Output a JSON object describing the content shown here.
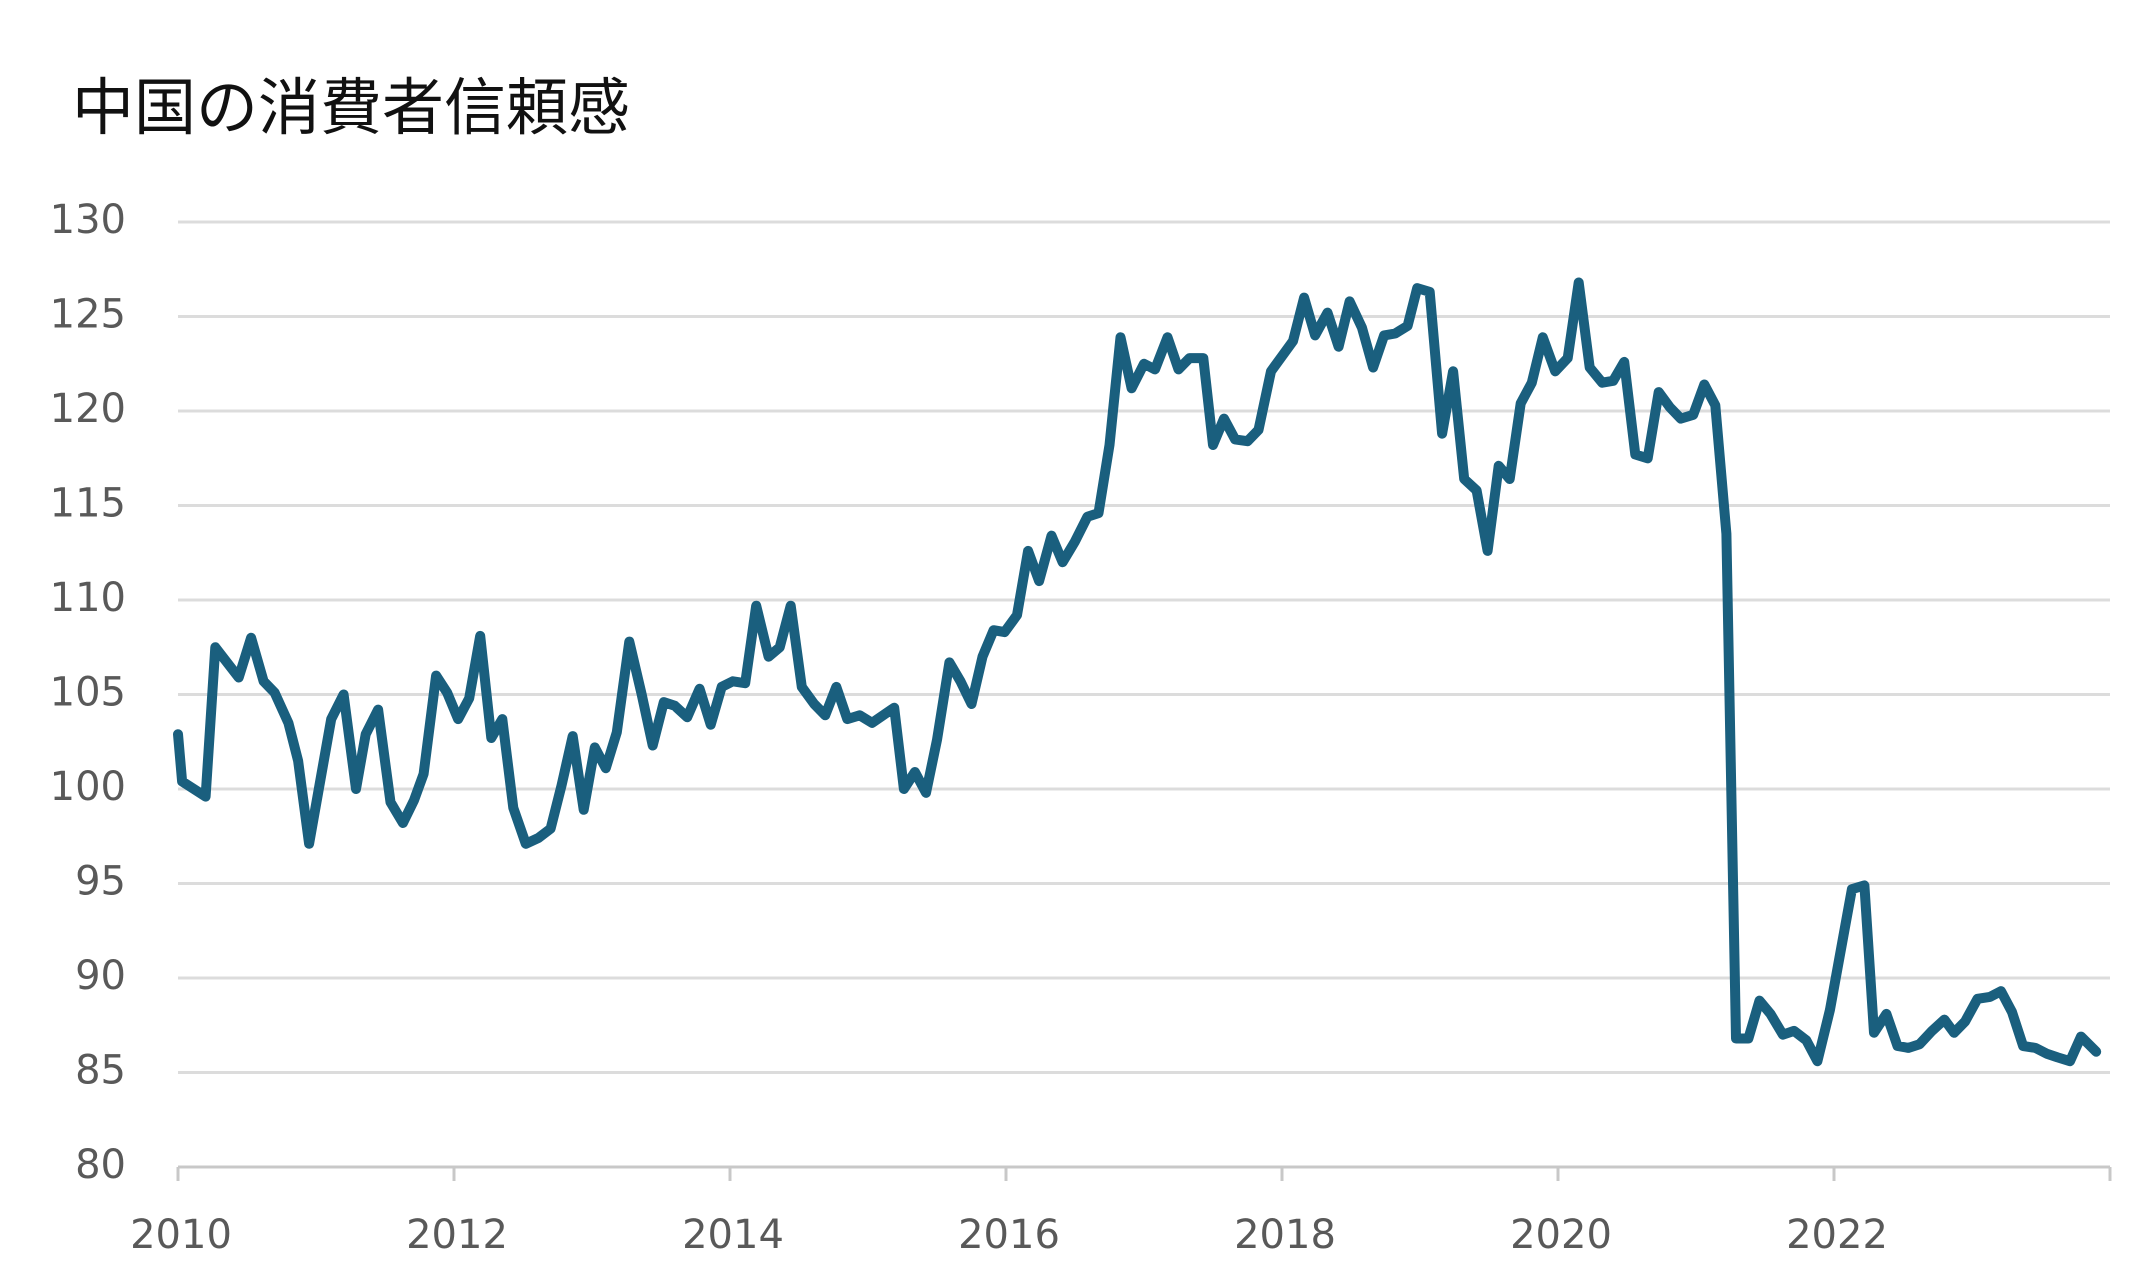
{
  "chart_data": {
    "type": "line",
    "title": "中国の消費者信頼感",
    "x": [
      2010.0,
      2010.03,
      2010.2,
      2010.27,
      2010.44,
      2010.53,
      2010.62,
      2010.7,
      2010.8,
      2010.87,
      2010.95,
      2011.02,
      2011.11,
      2011.2,
      2011.29,
      2011.36,
      2011.45,
      2011.54,
      2011.63,
      2011.71,
      2011.78,
      2011.87,
      2011.95,
      2012.03,
      2012.11,
      2012.19,
      2012.27,
      2012.35,
      2012.43,
      2012.52,
      2012.61,
      2012.7,
      2012.78,
      2012.86,
      2012.94,
      2013.02,
      2013.1,
      2013.18,
      2013.27,
      2013.36,
      2013.44,
      2013.52,
      2013.6,
      2013.69,
      2013.78,
      2013.86,
      2013.94,
      2014.02,
      2014.11,
      2014.19,
      2014.28,
      2014.36,
      2014.44,
      2014.52,
      2014.61,
      2014.69,
      2014.77,
      2014.85,
      2014.94,
      2015.03,
      2015.19,
      2015.26,
      2015.34,
      2015.42,
      2015.5,
      2015.59,
      2015.67,
      2015.75,
      2015.83,
      2015.91,
      2015.99,
      2016.08,
      2016.16,
      2016.24,
      2016.33,
      2016.41,
      2016.5,
      2016.59,
      2016.67,
      2016.75,
      2016.83,
      2016.91,
      2017.0,
      2017.08,
      2017.17,
      2017.25,
      2017.33,
      2017.43,
      2017.5,
      2017.58,
      2017.66,
      2017.75,
      2017.83,
      2017.92,
      2018.0,
      2018.08,
      2018.16,
      2018.24,
      2018.33,
      2018.41,
      2018.49,
      2018.58,
      2018.66,
      2018.74,
      2018.82,
      2018.91,
      2018.98,
      2019.07,
      2019.16,
      2019.24,
      2019.32,
      2019.41,
      2019.49,
      2019.57,
      2019.65,
      2019.73,
      2019.81,
      2019.89,
      2019.98,
      2020.07,
      2020.15,
      2020.23,
      2020.32,
      2020.4,
      2020.48,
      2020.56,
      2020.65,
      2020.73,
      2020.81,
      2020.89,
      2020.98,
      2021.06,
      2021.14,
      2021.22,
      2021.29,
      2021.38,
      2021.46,
      2021.54,
      2021.63,
      2021.71,
      2021.8,
      2021.88,
      2021.97,
      2022.13,
      2022.22,
      2022.29,
      2022.38,
      2022.46,
      2022.54,
      2022.62,
      2022.71,
      2022.8,
      2022.87,
      2022.95,
      2023.04,
      2023.13,
      2023.21,
      2023.29,
      2023.37,
      2023.46,
      2023.54,
      2023.62,
      2023.71,
      2023.79,
      2023.9
    ],
    "series": [
      {
        "color": "#1a5f7e",
        "values": [
          102.9,
          100.4,
          99.6,
          107.5,
          105.9,
          108,
          105.7,
          105.1,
          103.5,
          101.5,
          97.1,
          100,
          103.7,
          105,
          100,
          102.9,
          104.2,
          99.3,
          98.2,
          99.4,
          100.8,
          106,
          105.1,
          103.7,
          104.8,
          108.1,
          102.7,
          103.7,
          99,
          97.1,
          97.4,
          97.9,
          100.2,
          102.8,
          98.9,
          102.2,
          101.1,
          103,
          107.8,
          105,
          102.3,
          104.6,
          104.4,
          103.8,
          105.3,
          103.4,
          105.4,
          105.7,
          105.6,
          109.7,
          107,
          107.5,
          109.7,
          105.4,
          104.5,
          103.9,
          105.4,
          103.7,
          103.9,
          103.5,
          104.3,
          100,
          100.9,
          99.8,
          102.6,
          106.7,
          105.7,
          104.5,
          107,
          108.4,
          108.3,
          109.2,
          112.6,
          111,
          113.4,
          112,
          113.1,
          114.4,
          114.6,
          118.2,
          123.9,
          121.2,
          122.5,
          122.2,
          123.9,
          122.2,
          122.8,
          122.8,
          118.2,
          119.6,
          118.5,
          118.4,
          119,
          122.1,
          122.9,
          123.7,
          126,
          124,
          125.2,
          123.4,
          125.8,
          124.4,
          122.3,
          124,
          124.1,
          124.5,
          126.5,
          126.3,
          118.8,
          122.1,
          116.4,
          115.8,
          112.6,
          117.1,
          116.4,
          120.4,
          121.5,
          123.9,
          122.1,
          122.8,
          126.8,
          122.3,
          121.5,
          121.6,
          122.6,
          117.7,
          117.5,
          121,
          120.2,
          119.6,
          119.8,
          121.4,
          120.3,
          113.5,
          86.8,
          86.8,
          88.8,
          88.1,
          87,
          87.2,
          86.7,
          85.6,
          88.3,
          94.7,
          94.9,
          87.1,
          88.1,
          86.4,
          86.3,
          86.5,
          87.2,
          87.8,
          87.1,
          87.7,
          88.9,
          89,
          89.3,
          88.2,
          86.4,
          86.3,
          86,
          85.8,
          85.6,
          86.9,
          86.1
        ]
      }
    ],
    "xlim": [
      2010,
      2024
    ],
    "xticks": [
      2010,
      2012,
      2014,
      2016,
      2018,
      2020,
      2022
    ],
    "ylim": [
      80,
      130
    ],
    "yticks": [
      80,
      85,
      90,
      95,
      100,
      105,
      110,
      115,
      120,
      125,
      130
    ],
    "grid": true
  }
}
